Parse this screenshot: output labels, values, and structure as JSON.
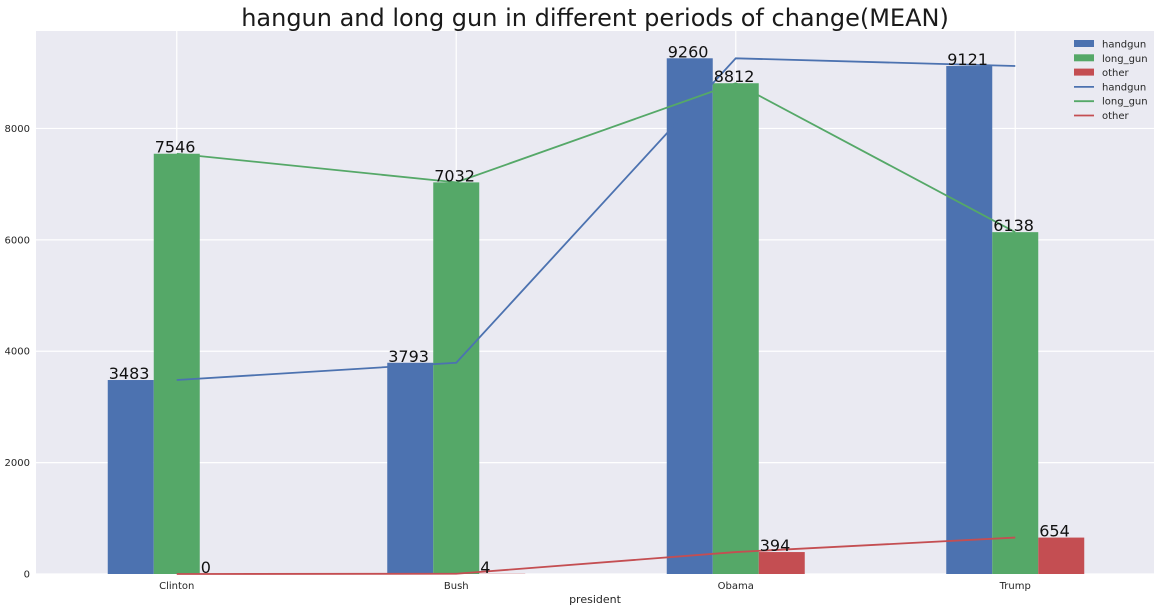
{
  "chart_data": {
    "type": "bar",
    "title": "hangun and long gun in different periods of change(MEAN)",
    "xlabel": "president",
    "ylabel": "",
    "categories": [
      "Clinton",
      "Bush",
      "Obama",
      "Trump"
    ],
    "ylim": [
      0,
      9750
    ],
    "yticks": [
      0,
      2000,
      4000,
      6000,
      8000
    ],
    "grid": true,
    "legend_position": "top-right",
    "series": [
      {
        "name": "handgun",
        "values": [
          3483,
          3793,
          9260,
          9121
        ],
        "color": "#4C72B0"
      },
      {
        "name": "long_gun",
        "values": [
          7546,
          7032,
          8812,
          6138
        ],
        "color": "#55A868"
      },
      {
        "name": "other",
        "values": [
          0,
          4,
          394,
          654
        ],
        "color": "#C44E52"
      }
    ],
    "line_series": [
      {
        "name": "handgun",
        "values": [
          3483,
          3793,
          9260,
          9121
        ],
        "color": "#4C72B0"
      },
      {
        "name": "long_gun",
        "values": [
          7546,
          7032,
          8812,
          6138
        ],
        "color": "#55A868"
      },
      {
        "name": "other",
        "values": [
          0,
          4,
          394,
          654
        ],
        "color": "#C44E52"
      }
    ],
    "data_labels": [
      {
        "series": "handgun",
        "values": [
          "3483",
          "3793",
          "9260",
          "9121"
        ]
      },
      {
        "series": "long_gun",
        "values": [
          "7546",
          "7032",
          "8812",
          "6138"
        ]
      },
      {
        "series": "other",
        "values": [
          "0",
          "4",
          "394",
          "654"
        ]
      }
    ]
  }
}
